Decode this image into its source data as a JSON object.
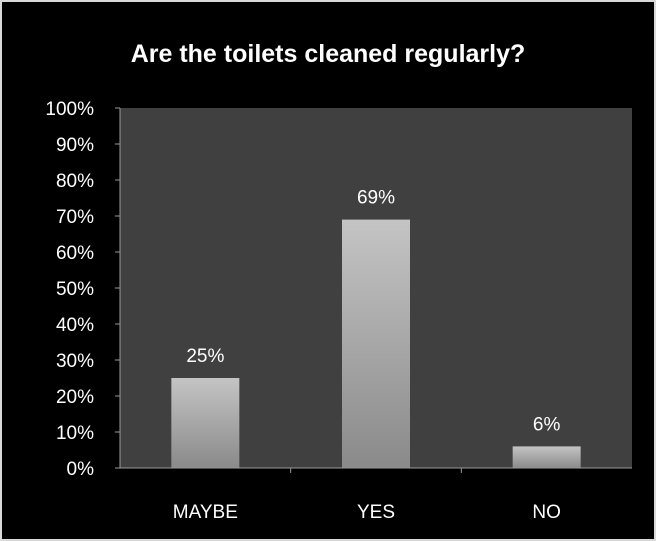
{
  "chart_data": {
    "type": "bar",
    "title": "Are the toilets cleaned regularly?",
    "categories": [
      "MAYBE",
      "YES",
      "NO"
    ],
    "values": [
      25,
      69,
      6
    ],
    "value_labels": [
      "25%",
      "69%",
      "6%"
    ],
    "y_tick_labels": [
      "0%",
      "10%",
      "20%",
      "30%",
      "40%",
      "50%",
      "60%",
      "70%",
      "80%",
      "90%",
      "100%"
    ],
    "ylim": [
      0,
      100
    ],
    "grid": false,
    "legend": "none",
    "colors": {
      "background": "#000000",
      "plot_area": "#404040",
      "bar_light": "#c4c4c4",
      "bar_dark": "#8a8a8a",
      "text": "#ffffff",
      "axis": "#9a9a9a"
    }
  }
}
